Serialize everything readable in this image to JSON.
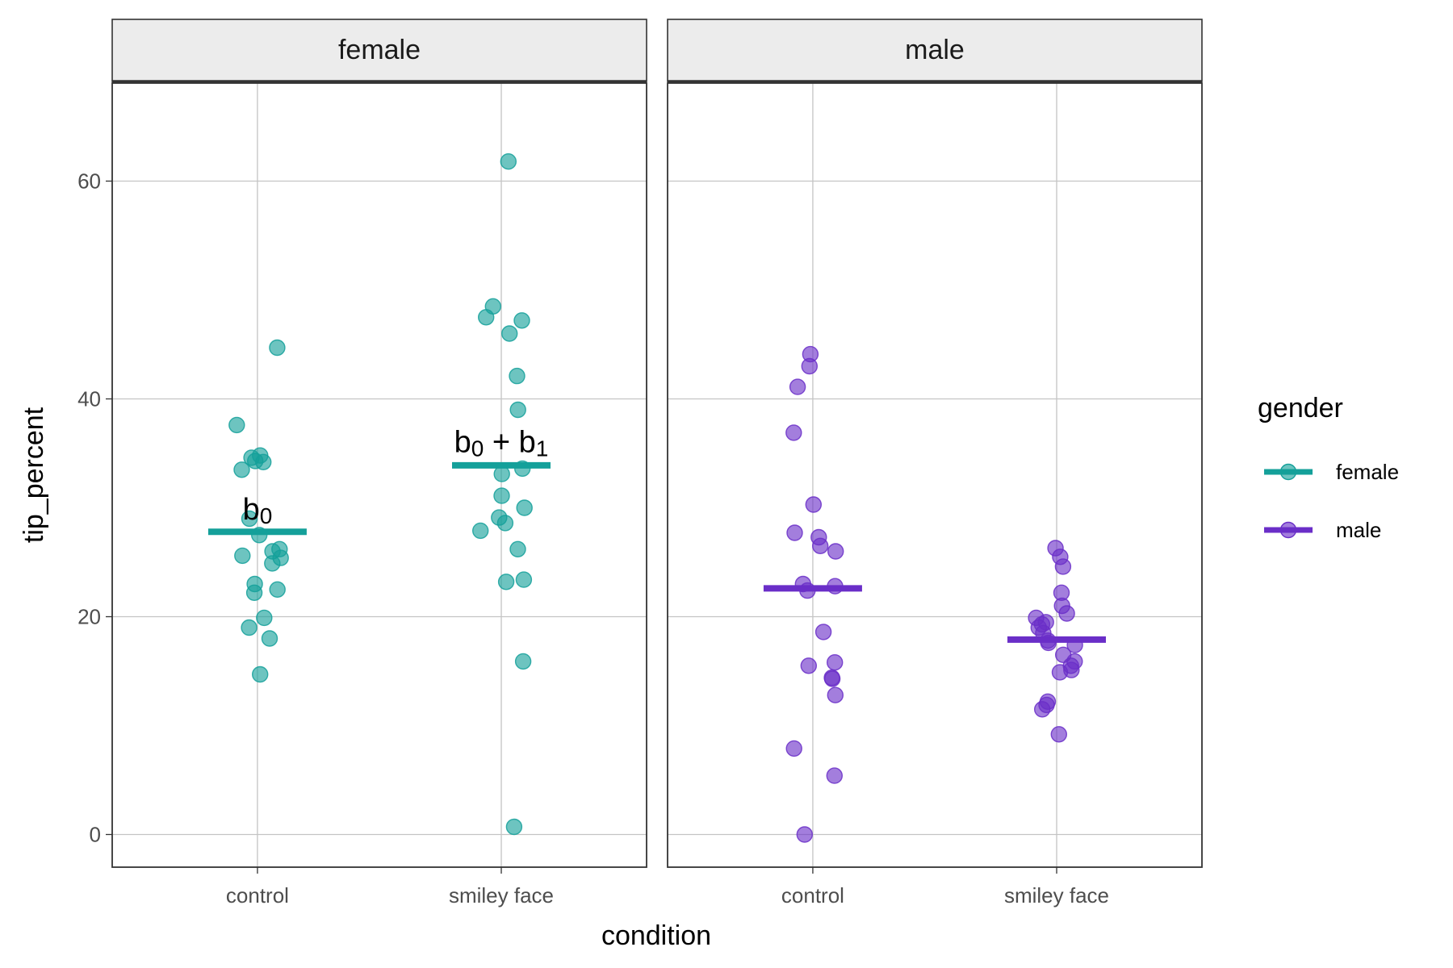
{
  "chart_data": {
    "type": "scatter",
    "xlabel": "condition",
    "ylabel": "tip_percent",
    "ylim": [
      -3,
      69
    ],
    "yticks": [
      0,
      20,
      40,
      60
    ],
    "categories": [
      "control",
      "smiley face"
    ],
    "facet_by": "gender",
    "legend": {
      "title": "gender",
      "position": "right"
    },
    "series": [
      {
        "name": "female",
        "color": "#14a09a",
        "points": {
          "control": [
            44.7,
            37.6,
            34.8,
            34.6,
            34.3,
            34.2,
            33.5,
            29.0,
            27.5,
            26.2,
            26.0,
            25.6,
            25.4,
            24.9,
            23.0,
            22.5,
            22.2,
            19.9,
            19.0,
            18.0,
            14.7
          ],
          "smiley face": [
            61.8,
            48.5,
            47.5,
            47.2,
            46.0,
            42.1,
            39.0,
            33.6,
            33.1,
            31.1,
            30.0,
            29.1,
            28.6,
            27.9,
            26.2,
            23.4,
            23.2,
            15.9,
            0.7
          ]
        },
        "means": {
          "control": 27.8,
          "smiley face": 33.9
        }
      },
      {
        "name": "male",
        "color": "#6a2ec8",
        "points": {
          "control": [
            44.1,
            43.0,
            41.1,
            36.9,
            30.3,
            27.7,
            27.3,
            26.5,
            26.0,
            23.0,
            22.8,
            22.4,
            18.6,
            15.8,
            15.5,
            14.4,
            14.3,
            12.8,
            7.9,
            5.4,
            0.0
          ],
          "smiley face": [
            26.3,
            25.5,
            24.6,
            22.2,
            21.0,
            20.3,
            19.9,
            19.5,
            19.3,
            19.0,
            18.5,
            17.8,
            17.6,
            17.4,
            16.5,
            15.9,
            15.5,
            15.1,
            14.9,
            12.2,
            11.9,
            11.5,
            9.2
          ]
        },
        "means": {
          "control": 22.6,
          "smiley face": 17.9
        }
      }
    ],
    "annotations": [
      {
        "panel": "female",
        "category": "control",
        "y": 29.8,
        "base": "b",
        "sub": "0",
        "plus": "",
        "base2": "",
        "sub2": ""
      },
      {
        "panel": "female",
        "category": "smiley face",
        "y": 36.0,
        "base": "b",
        "sub": "0",
        "plus": " + ",
        "base2": "b",
        "sub2": "1"
      }
    ]
  }
}
